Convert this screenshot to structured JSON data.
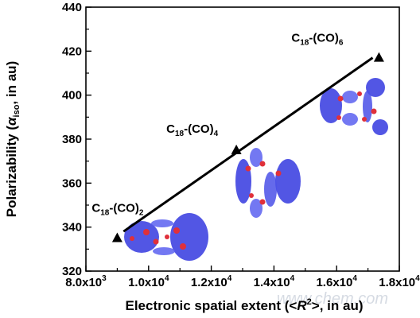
{
  "chart_data": {
    "type": "line",
    "xlabel_parts": [
      "Electronic spatial extent (<",
      "R",
      "2",
      ">, in au)"
    ],
    "ylabel_parts": [
      "Polarizability (",
      "α",
      "iso",
      ", in au)"
    ],
    "xlim": [
      8000,
      18000
    ],
    "ylim": [
      320,
      440
    ],
    "x_ticks": [
      {
        "value": 8000,
        "mant": "8.0x10",
        "exp": "3"
      },
      {
        "value": 10000,
        "mant": "1.0x10",
        "exp": "4"
      },
      {
        "value": 12000,
        "mant": "1.2x10",
        "exp": "4"
      },
      {
        "value": 14000,
        "mant": "1.4x10",
        "exp": "4"
      },
      {
        "value": 16000,
        "mant": "1.6x10",
        "exp": "4"
      },
      {
        "value": 18000,
        "mant": "1.8x10",
        "exp": "4"
      }
    ],
    "y_ticks": [
      320,
      340,
      360,
      380,
      400,
      420,
      440
    ],
    "series": [
      {
        "marker": "triangle",
        "color": "#000000",
        "points": [
          {
            "x": 9000,
            "y": 335,
            "label": [
              "C",
              "18",
              "-(CO)",
              "2"
            ]
          },
          {
            "x": 12800,
            "y": 375,
            "label": [
              "C",
              "18",
              "-(CO)",
              "4"
            ]
          },
          {
            "x": 17350,
            "y": 417,
            "label": [
              "C",
              "18",
              "-(CO)",
              "6"
            ]
          }
        ]
      }
    ],
    "fit_line": {
      "from": [
        9200,
        338
      ],
      "to": [
        17150,
        417
      ]
    },
    "grid": false,
    "legend": "none"
  },
  "watermark": "www.chem.com",
  "colors": {
    "isosurface_blue": "#3a3fe0",
    "isosurface_red": "#e0303a"
  }
}
